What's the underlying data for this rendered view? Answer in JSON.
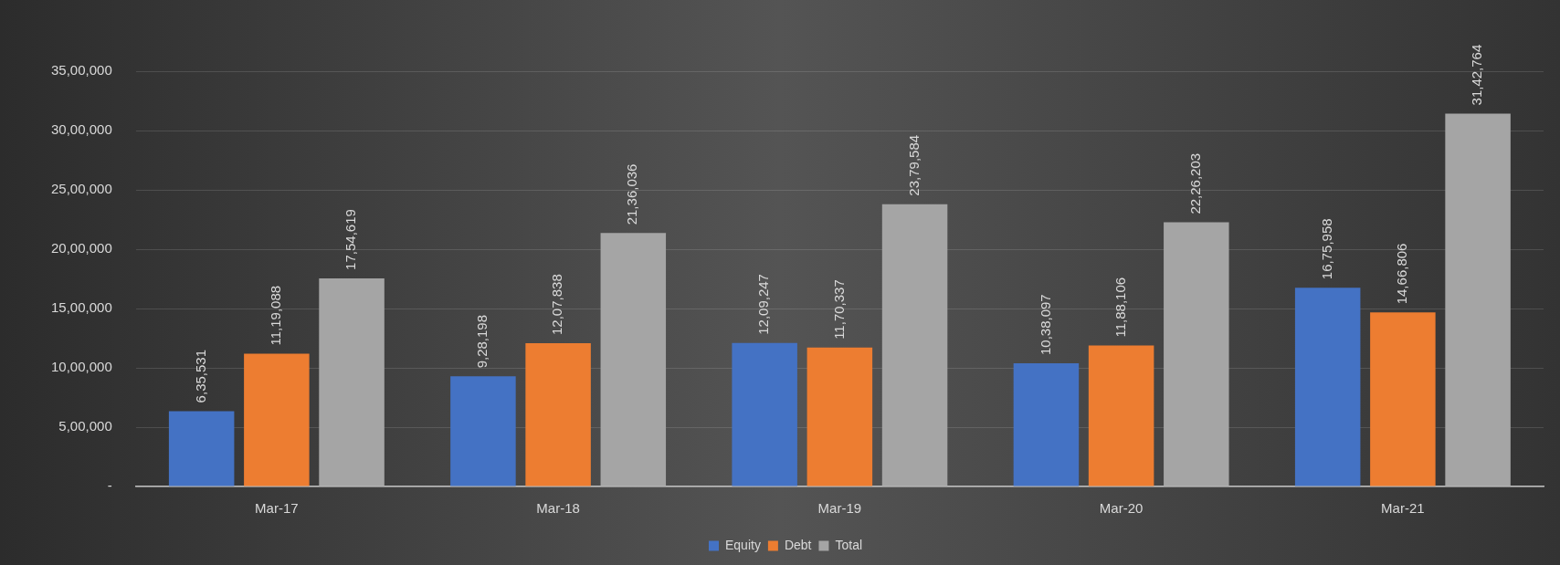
{
  "chart_data": {
    "type": "bar",
    "categories": [
      "Mar-17",
      "Mar-18",
      "Mar-19",
      "Mar-20",
      "Mar-21"
    ],
    "series": [
      {
        "name": "Equity",
        "color": "#4472c4",
        "values": [
          635531,
          928198,
          1209247,
          1038097,
          1675958
        ],
        "value_labels": [
          "6,35,531",
          "9,28,198",
          "12,09,247",
          "10,38,097",
          "16,75,958"
        ]
      },
      {
        "name": "Debt",
        "color": "#ed7d31",
        "values": [
          1119088,
          1207838,
          1170337,
          1188106,
          1466806
        ],
        "value_labels": [
          "11,19,088",
          "12,07,838",
          "11,70,337",
          "11,88,106",
          "14,66,806"
        ]
      },
      {
        "name": "Total",
        "color": "#a5a5a5",
        "values": [
          1754619,
          2136036,
          2379584,
          2226203,
          3142764
        ],
        "value_labels": [
          "17,54,619",
          "21,36,036",
          "23,79,584",
          "22,26,203",
          "31,42,764"
        ]
      }
    ],
    "ylim": [
      0,
      3500000
    ],
    "yticks": [
      {
        "value": 0,
        "label": "-"
      },
      {
        "value": 500000,
        "label": "5,00,000"
      },
      {
        "value": 1000000,
        "label": "10,00,000"
      },
      {
        "value": 1500000,
        "label": "15,00,000"
      },
      {
        "value": 2000000,
        "label": "20,00,000"
      },
      {
        "value": 2500000,
        "label": "25,00,000"
      },
      {
        "value": 3000000,
        "label": "30,00,000"
      },
      {
        "value": 3500000,
        "label": "35,00,000"
      }
    ],
    "grid": "y",
    "legend": "bottom"
  }
}
